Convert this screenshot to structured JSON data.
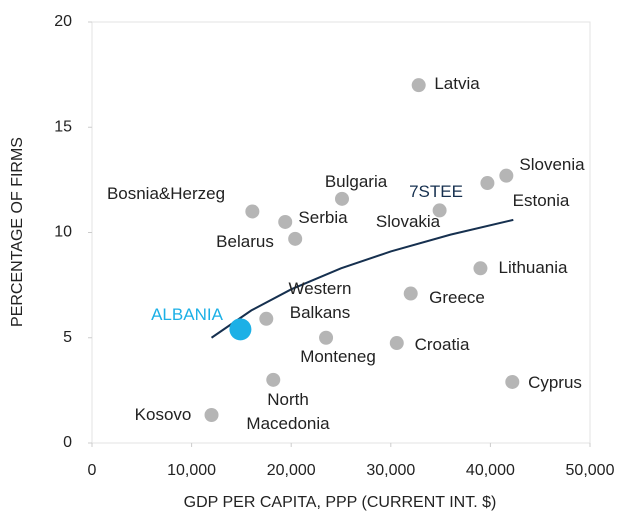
{
  "chart_data": {
    "type": "scatter",
    "x_label": "GDP PER CAPITA, PPP (CURRENT INT. $)",
    "y_label": "PERCENTAGE OF FIRMS",
    "xlim": [
      0,
      50000
    ],
    "ylim": [
      0,
      20
    ],
    "xticks": [
      0,
      {
        "value": 10000,
        "label": "10,000"
      },
      {
        "value": 20000,
        "label": "20,000"
      },
      {
        "value": 30000,
        "label": "30,000"
      },
      {
        "value": 40000,
        "label": "40,000"
      },
      {
        "value": 50000,
        "label": "50,000"
      }
    ],
    "yticks": [
      0,
      5,
      10,
      15,
      20
    ],
    "grid": false,
    "names": [
      "Latvia",
      "Slovenia",
      "Estonia",
      "Slovakia",
      "Bulgaria",
      "Bosnia&Herzeg",
      "Serbia",
      "Belarus",
      "Lithuania",
      "Greece",
      "Western\nBalkans",
      "ALBANIA",
      "Monteneg",
      "Croatia",
      "Cyprus",
      "North\nMacedonia",
      "Kosovo"
    ],
    "x": [
      32800,
      41600,
      39700,
      34900,
      25100,
      16100,
      19400,
      20400,
      39000,
      32000,
      17500,
      14900,
      23500,
      30600,
      42200,
      18200,
      12000
    ],
    "y": [
      17.0,
      12.7,
      12.35,
      11.05,
      11.6,
      11.0,
      10.5,
      9.7,
      8.3,
      7.1,
      5.9,
      5.4,
      5.0,
      4.75,
      2.9,
      3.0,
      1.33
    ],
    "colors": [
      "#b5b5b5",
      "#b5b5b5",
      "#b5b5b5",
      "#b5b5b5",
      "#b5b5b5",
      "#b5b5b5",
      "#b5b5b5",
      "#b5b5b5",
      "#b5b5b5",
      "#b5b5b5",
      "#b5b5b5",
      "#1cb0e6",
      "#b5b5b5",
      "#b5b5b5",
      "#b5b5b5",
      "#b5b5b5",
      "#b5b5b5"
    ],
    "annotation": "7STEE",
    "trendline": {
      "color": "#16304f",
      "x": [
        12000,
        16000,
        20000,
        25000,
        30000,
        36000,
        42300
      ],
      "y": [
        5.0,
        6.3,
        7.3,
        8.3,
        9.1,
        9.9,
        10.6
      ]
    }
  }
}
